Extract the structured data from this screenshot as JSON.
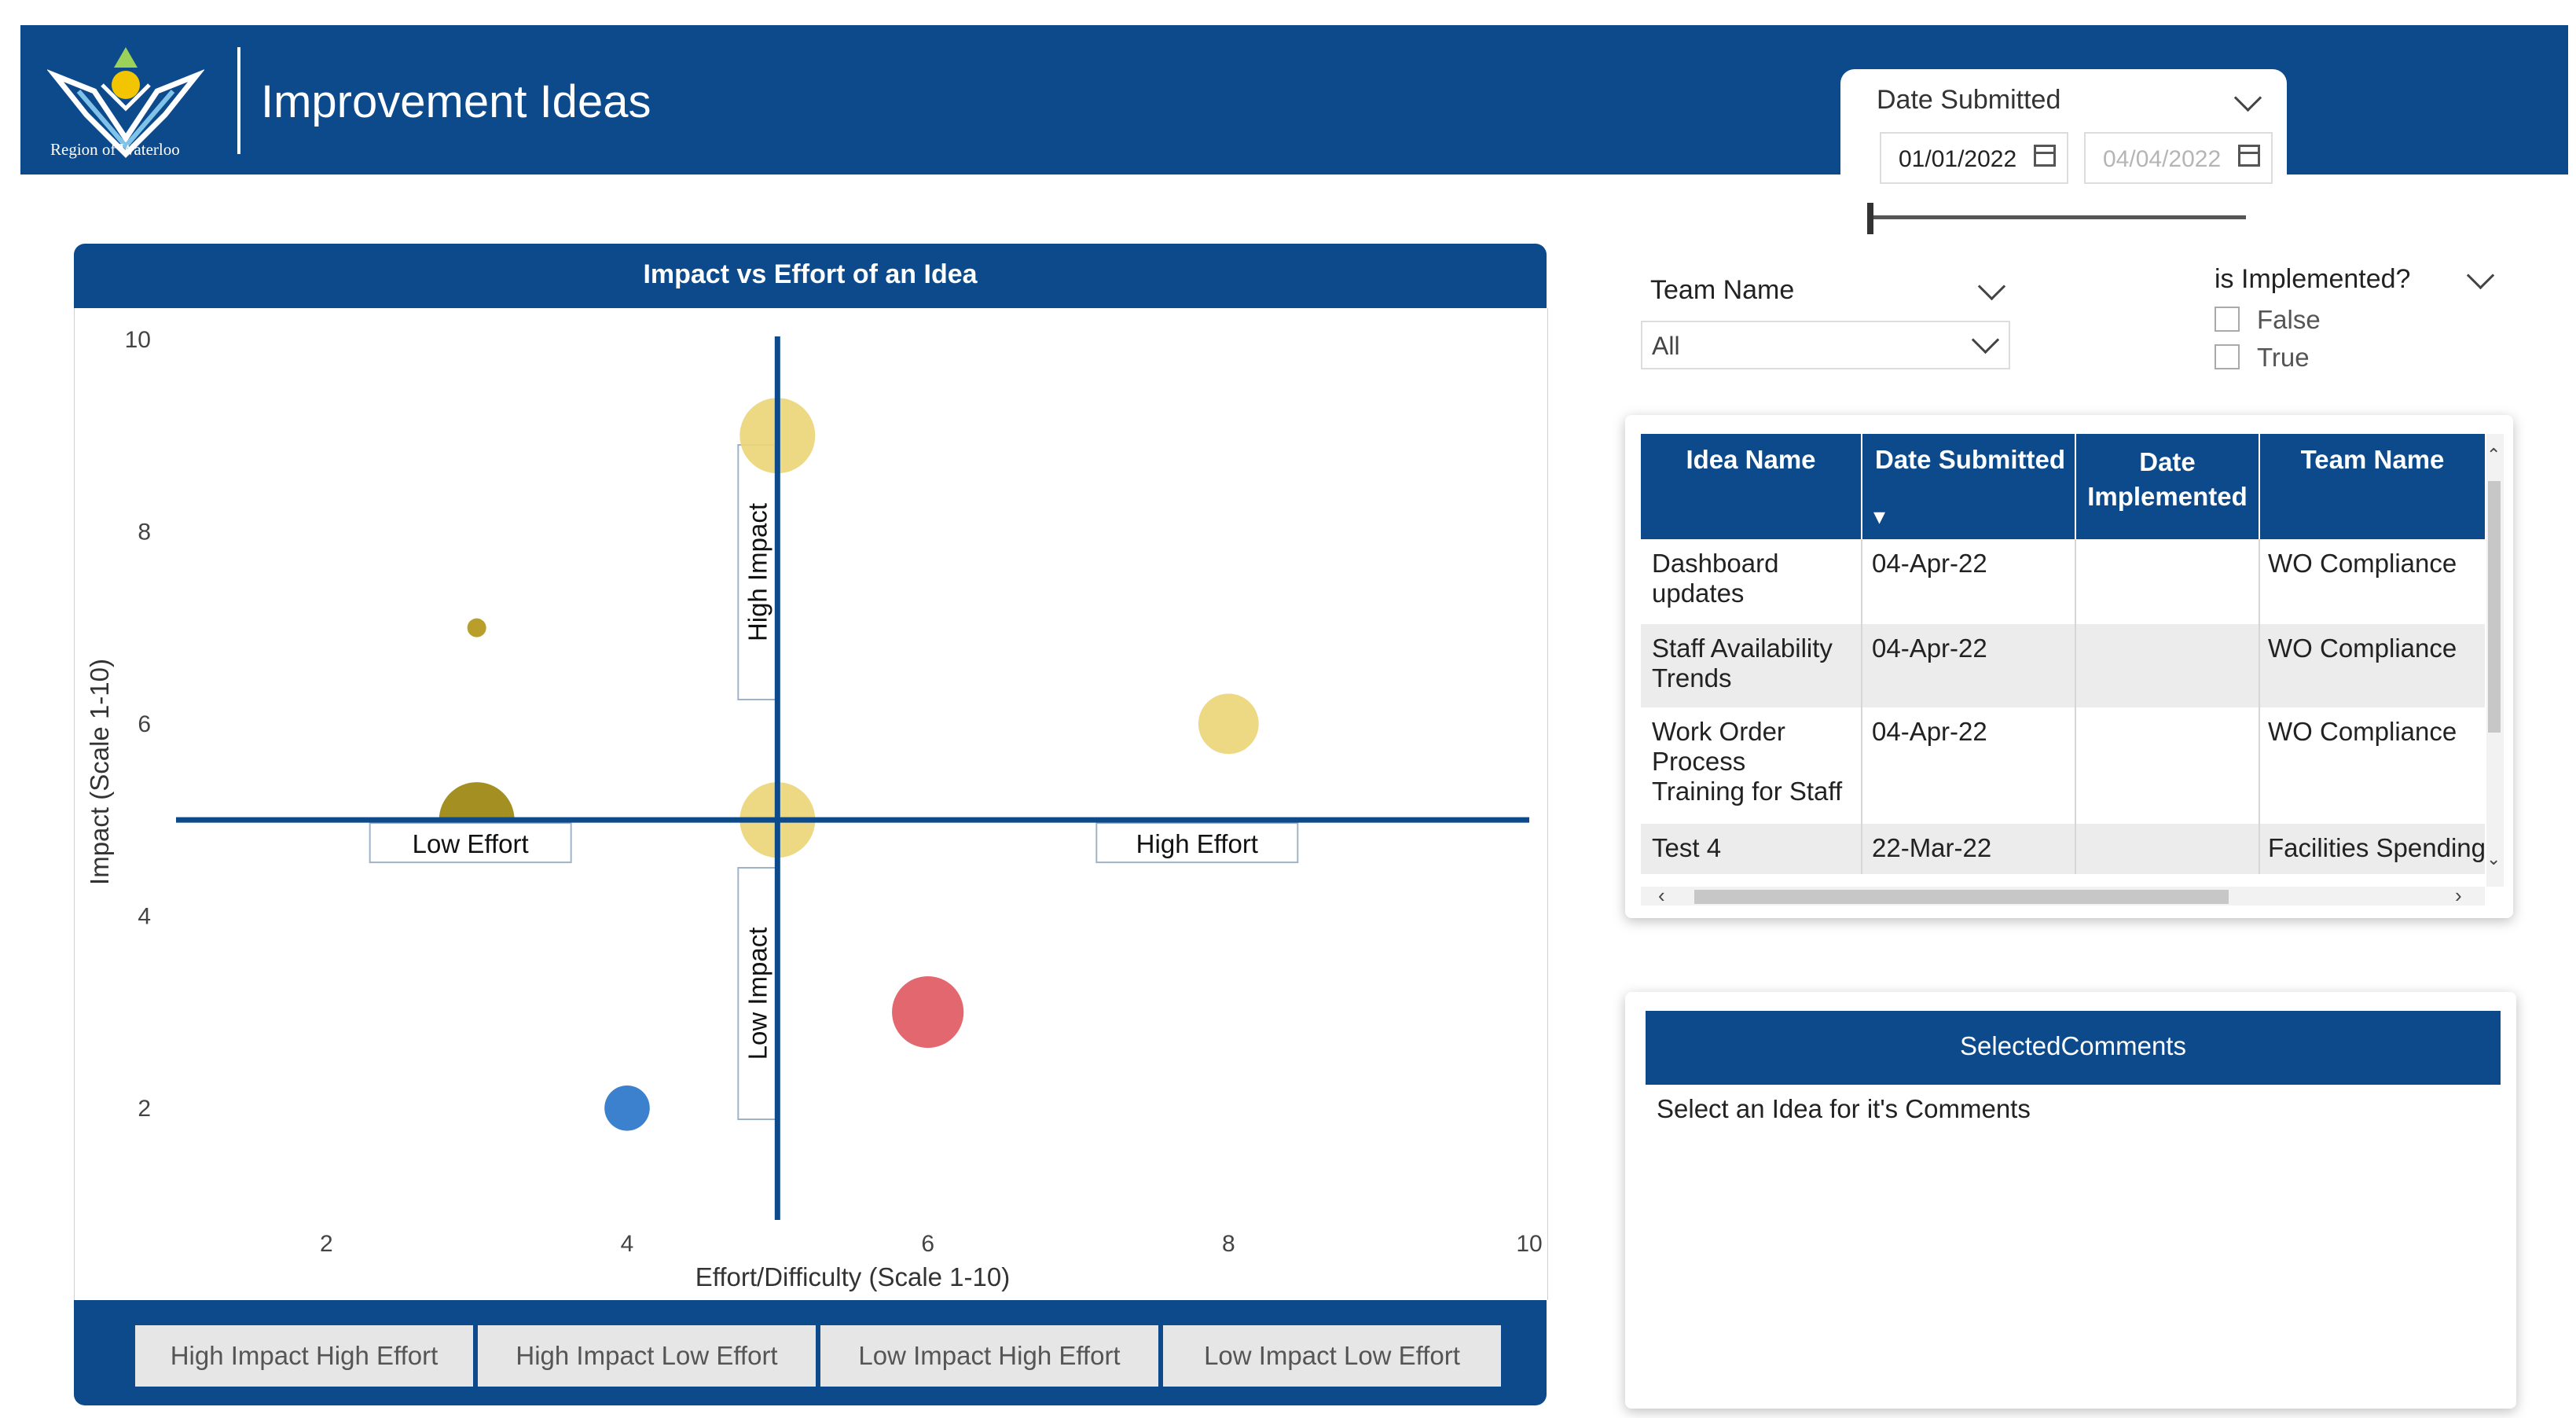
{
  "header": {
    "org_name": "Region of Waterloo",
    "title": "Improvement Ideas",
    "colors": {
      "brand": "#0c4a8b"
    }
  },
  "date_filter": {
    "label": "Date Submitted",
    "start": "01/01/2022",
    "end": "04/04/2022"
  },
  "chart": {
    "title": "Impact vs Effort of an Idea",
    "quadrant_labels": {
      "high_impact": "High Impact",
      "low_impact": "Low Impact",
      "low_effort": "Low Effort",
      "high_effort": "High Effort"
    },
    "buttons": [
      "High Impact High Effort",
      "High Impact Low Effort",
      "Low Impact High Effort",
      "Low Impact Low Effort"
    ]
  },
  "chart_data": {
    "type": "scatter",
    "title": "Impact vs Effort of an Idea",
    "xlabel": "Effort/Difficulty (Scale 1-10)",
    "ylabel": "Impact (Scale 1-10)",
    "xlim": [
      1,
      10
    ],
    "ylim": [
      1,
      10
    ],
    "xticks": [
      2,
      4,
      6,
      8,
      10
    ],
    "yticks": [
      2,
      4,
      6,
      8,
      10
    ],
    "reference_lines": {
      "x": 5,
      "y": 5
    },
    "grid": false,
    "points": [
      {
        "x": 5,
        "y": 9,
        "size": 2,
        "color": "#ecd579"
      },
      {
        "x": 3,
        "y": 7,
        "size": 0.5,
        "color": "#b3961a"
      },
      {
        "x": 8,
        "y": 6,
        "size": 1.6,
        "color": "#ecd579"
      },
      {
        "x": 3,
        "y": 5,
        "size": 2,
        "color": "#9c8510"
      },
      {
        "x": 5,
        "y": 5,
        "size": 2,
        "color": "#ecd579"
      },
      {
        "x": 6,
        "y": 3,
        "size": 1.9,
        "color": "#e05a63"
      },
      {
        "x": 4,
        "y": 2,
        "size": 1.2,
        "color": "#2a76c9"
      }
    ]
  },
  "team_filter": {
    "label": "Team Name",
    "value": "All"
  },
  "implemented_filter": {
    "label": "is Implemented?",
    "options": [
      "False",
      "True"
    ]
  },
  "table": {
    "columns": [
      "Idea Name",
      "Date Submitted",
      "Date Implemented",
      "Team Name"
    ],
    "sort_indicator": "▾",
    "rows": [
      {
        "idea_line1": "Dashboard",
        "idea_line2": "updates",
        "idea_line3": "",
        "date": "04-Apr-22",
        "implemented": "",
        "team": "WO Compliance"
      },
      {
        "idea_line1": "Staff Availability",
        "idea_line2": "Trends",
        "idea_line3": "",
        "date": "04-Apr-22",
        "implemented": "",
        "team": "WO Compliance"
      },
      {
        "idea_line1": "Work Order",
        "idea_line2": "Process",
        "idea_line3": "Training for Staff",
        "date": "04-Apr-22",
        "implemented": "",
        "team": "WO Compliance"
      },
      {
        "idea_line1": "Test 4",
        "idea_line2": "",
        "idea_line3": "",
        "date": "22-Mar-22",
        "implemented": "",
        "team": "Facilities Spending"
      }
    ]
  },
  "comments": {
    "title": "SelectedComments",
    "placeholder": "Select an Idea for it's Comments"
  }
}
